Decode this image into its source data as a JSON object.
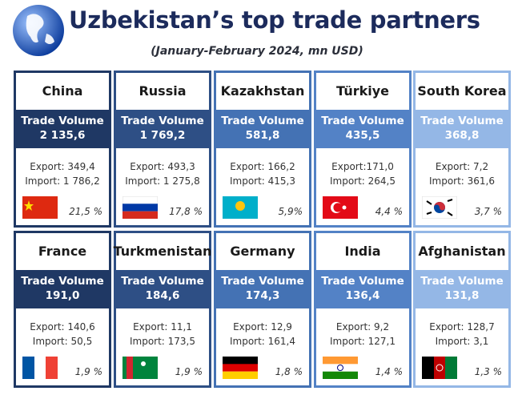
{
  "header": {
    "title": "Uzbekistan’s top trade partners",
    "subtitle": "(January-February 2024, mn USD)"
  },
  "volume_label": "Trade Volume",
  "cards": [
    {
      "name": "China",
      "volume": "2 135,6",
      "export": "Export: 349,4",
      "import": "Import: 1 786,2",
      "share": "21,5 %"
    },
    {
      "name": "Russia",
      "volume": "1 769,2",
      "export": "Export: 493,3",
      "import": "Import: 1 275,8",
      "share": "17,8 %"
    },
    {
      "name": "Kazakhstan",
      "volume": "581,8",
      "export": "Export: 166,2",
      "import": "Import: 415,3",
      "share": "5,9%"
    },
    {
      "name": "Türkiye",
      "volume": "435,5",
      "export": "Export:171,0",
      "import": "Import: 264,5",
      "share": "4,4 %"
    },
    {
      "name": "South Korea",
      "volume": "368,8",
      "export": "Export: 7,2",
      "import": "Import: 361,6",
      "share": "3,7 %"
    },
    {
      "name": "France",
      "volume": "191,0",
      "export": "Export: 140,6",
      "import": "Import: 50,5",
      "share": "1,9 %"
    },
    {
      "name": "Turkmenistan",
      "volume": "184,6",
      "export": "Export: 11,1",
      "import": "Import: 173,5",
      "share": "1,9 %"
    },
    {
      "name": "Germany",
      "volume": "174,3",
      "export": "Export: 12,9",
      "import": "Import: 161,4",
      "share": "1,8 %"
    },
    {
      "name": "India",
      "volume": "136,4",
      "export": "Export: 9,2",
      "import": "Import: 127,1",
      "share": "1,4 %"
    },
    {
      "name": "Afghanistan",
      "volume": "131,8",
      "export": "Export: 128,7",
      "import": "Import: 3,1",
      "share": "1,3 %"
    }
  ]
}
